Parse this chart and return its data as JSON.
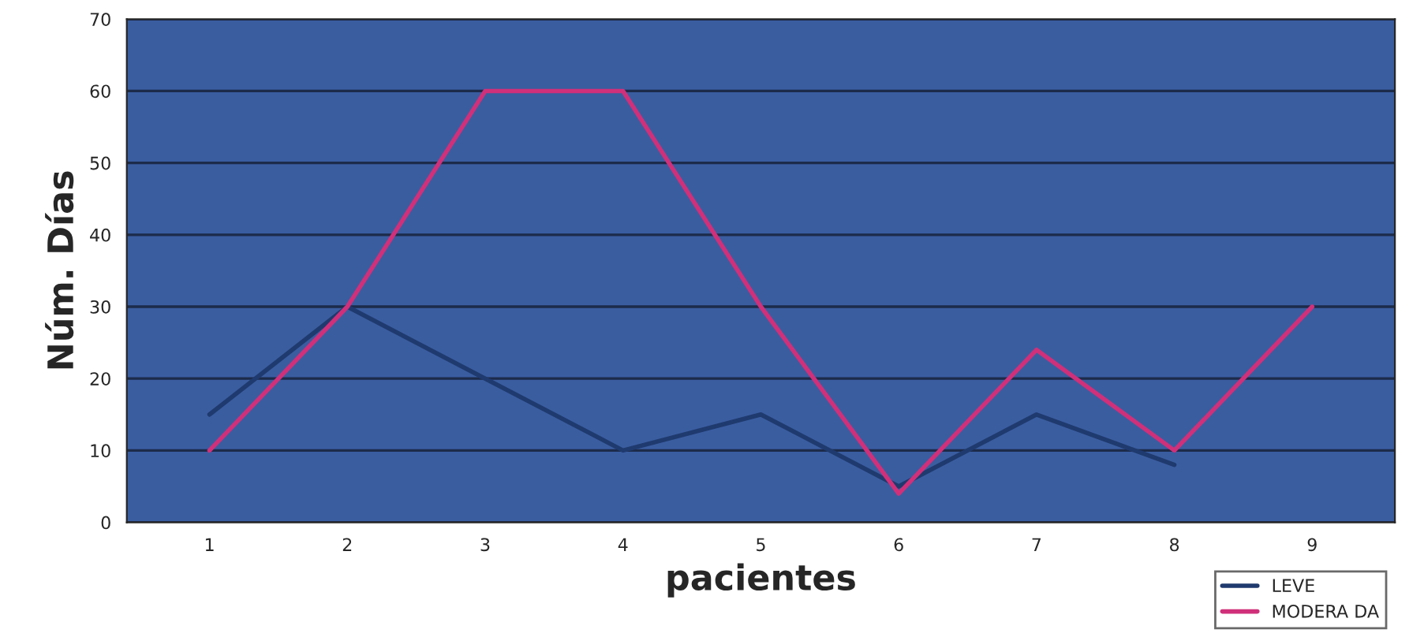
{
  "chart_data": {
    "type": "line",
    "xlabel": "pacientes",
    "ylabel": "Núm. Días",
    "categories": [
      "1",
      "2",
      "3",
      "4",
      "5",
      "6",
      "7",
      "8",
      "9"
    ],
    "series": [
      {
        "name": "LEVE",
        "color": "#1f3a6e",
        "values": [
          15,
          30,
          20,
          10,
          15,
          5,
          15,
          8,
          null
        ]
      },
      {
        "name": "MODERA DA",
        "color": "#d0307a",
        "values": [
          10,
          30,
          60,
          60,
          30,
          4,
          24,
          10,
          30
        ]
      }
    ],
    "ylim": [
      0,
      70
    ],
    "yticks": [
      0,
      10,
      20,
      30,
      40,
      50,
      60,
      70
    ],
    "grid": "y",
    "legend": "bottom right",
    "marker": "none",
    "line_style": "solid"
  }
}
